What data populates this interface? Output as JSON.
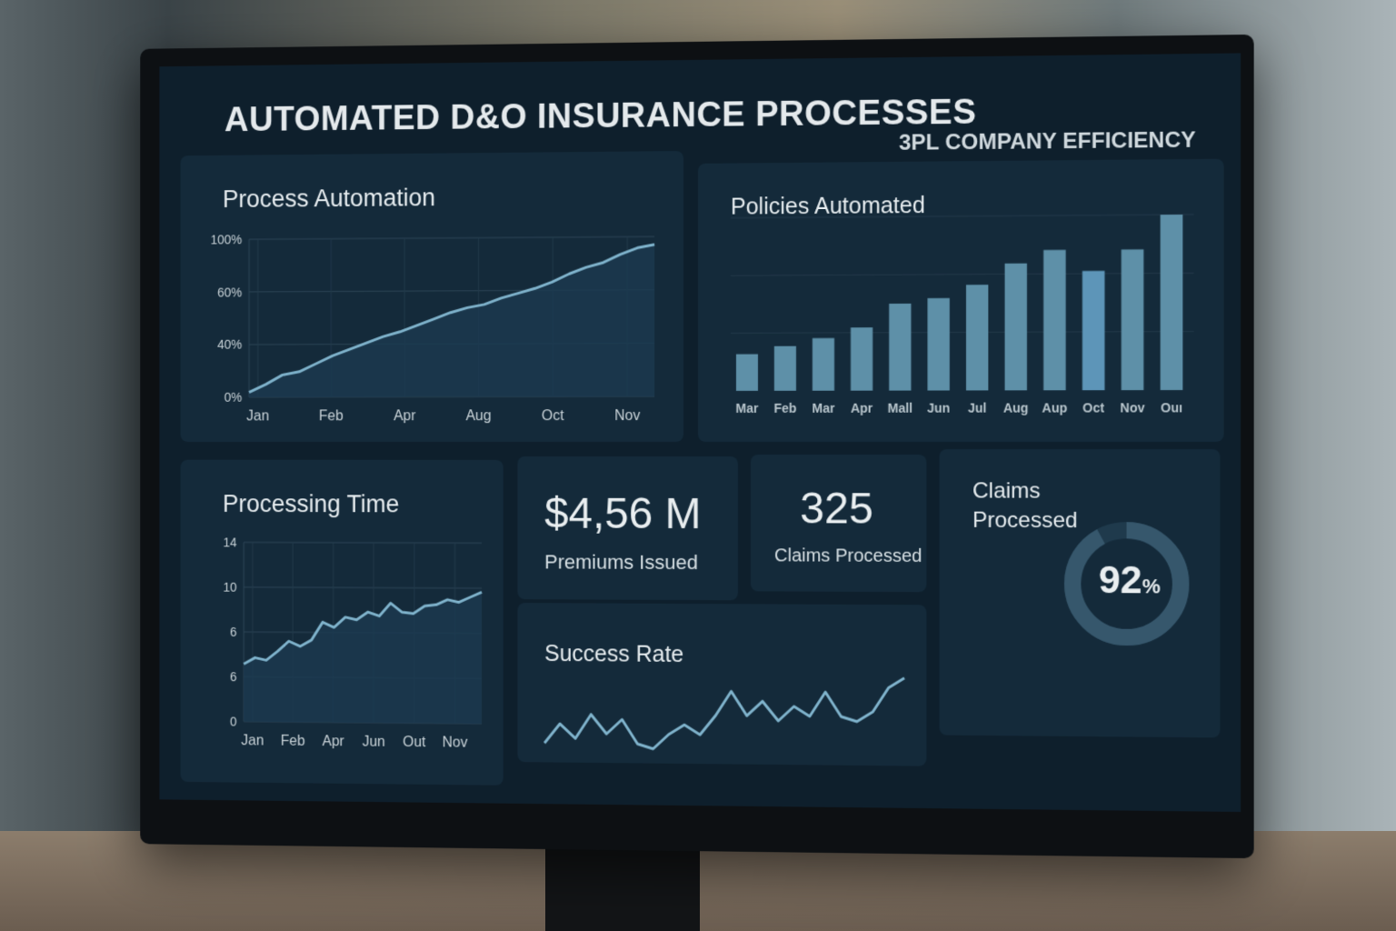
{
  "header": {
    "title": "AUTOMATED D&O INSURANCE PROCESSES",
    "subtitle": "3PL COMPANY EFFICIENCY"
  },
  "process_automation": {
    "title": "Process Automation"
  },
  "policies_automated": {
    "title": "Policies Automated"
  },
  "processing_time": {
    "title": "Processing Time"
  },
  "premiums": {
    "value": "$4,56 M",
    "label": "Premiums Issued"
  },
  "claims": {
    "value": "325",
    "label": "Claims Processed"
  },
  "success_rate": {
    "title": "Success Rate"
  },
  "claims_donut": {
    "title_line1": "Claims",
    "title_line2": "Processed",
    "value_text": "92",
    "unit": "%",
    "percent": 92
  },
  "colors": {
    "line": "#7fb3cc",
    "bar": "#5e90a8",
    "panel": "#142a3a",
    "screen": "#0e1f2c"
  },
  "chart_data": [
    {
      "type": "area",
      "title": "Process Automation",
      "yticks": [
        "0%",
        "40%",
        "60%",
        "100%"
      ],
      "ylim": [
        0,
        100
      ],
      "xticks": [
        "Jan",
        "Feb",
        "Apr",
        "Aug",
        "Oct",
        "Nov"
      ],
      "values": [
        3,
        8,
        14,
        16,
        21,
        26,
        30,
        34,
        38,
        41,
        45,
        49,
        53,
        56,
        58,
        62,
        65,
        68,
        72,
        77,
        81,
        84,
        89,
        93,
        95
      ]
    },
    {
      "type": "bar",
      "title": "Policies Automated",
      "categories": [
        "Mar",
        "Feb",
        "Mar",
        "Apr",
        "Mall",
        "Jun",
        "Jul",
        "Aug",
        "Aup",
        "Oct",
        "Nov",
        "Ouı"
      ],
      "values": [
        14,
        17,
        20,
        24,
        33,
        35,
        40,
        48,
        53,
        45,
        53,
        66
      ]
    },
    {
      "type": "line",
      "title": "Processing Time",
      "yticks": [
        "0",
        "6",
        "6",
        "10",
        "14"
      ],
      "ylim": [
        0,
        14
      ],
      "xticks": [
        "Jan",
        "Feb",
        "Apr",
        "Jun",
        "Out",
        "Nov"
      ],
      "values": [
        4.5,
        5,
        4.8,
        5.5,
        6.3,
        5.9,
        6.4,
        7.8,
        7.4,
        8.2,
        8,
        8.6,
        8.3,
        9.3,
        8.6,
        8.5,
        9.1,
        9.2,
        9.6,
        9.4,
        9.8,
        10.2
      ]
    },
    {
      "type": "line",
      "title": "Success Rate",
      "values": [
        3,
        5,
        3.5,
        6,
        4,
        5.5,
        3,
        2.5,
        4,
        5,
        4,
        6,
        8.5,
        6,
        7.5,
        5.5,
        7,
        6,
        8.5,
        6,
        5.5,
        6.5,
        9,
        10
      ]
    }
  ]
}
